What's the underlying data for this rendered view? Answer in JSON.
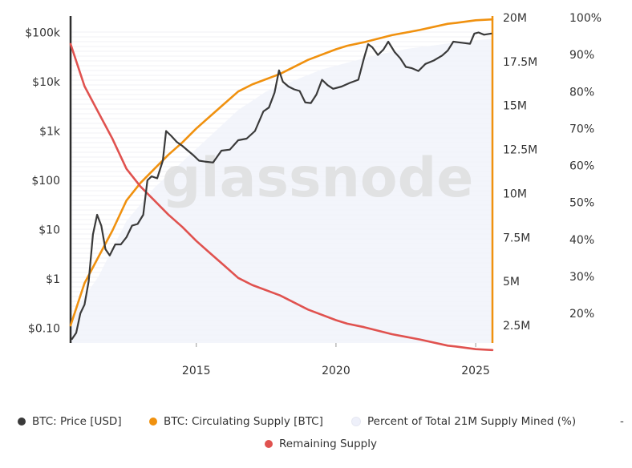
{
  "chart_data": {
    "type": "line",
    "watermark": "glassnode",
    "colors": {
      "price": "#3a3a3a",
      "supply": "#f0910f",
      "percent": "#f2f4fb",
      "remaining": "#e0524f"
    },
    "x_axis": {
      "range": [
        2010.5,
        2025.6
      ],
      "ticks": [
        2015,
        2020,
        2025
      ],
      "tick_labels": [
        "2015",
        "2020",
        "2025"
      ]
    },
    "y_left": {
      "label": "",
      "scale": "log",
      "range": [
        0.05,
        200000
      ],
      "ticks": [
        0.1,
        1,
        10,
        100,
        1000,
        10000,
        100000
      ],
      "tick_labels": [
        "$0.10",
        "$1",
        "$10",
        "$100",
        "$1k",
        "$10k",
        "$100k"
      ]
    },
    "y_mid": {
      "label": "",
      "range": [
        1500000,
        20000000
      ],
      "ticks": [
        2500000,
        5000000,
        7500000,
        10000000,
        12500000,
        15000000,
        17500000,
        20000000
      ],
      "tick_labels": [
        "2.5M",
        "5M",
        "7.5M",
        "10M",
        "12.5M",
        "15M",
        "17.5M",
        "20M"
      ]
    },
    "y_right": {
      "label": "",
      "range": [
        12,
        100
      ],
      "ticks": [
        20,
        30,
        40,
        50,
        60,
        70,
        80,
        90,
        100
      ],
      "tick_labels": [
        "20%",
        "30%",
        "40%",
        "50%",
        "60%",
        "70%",
        "80%",
        "90%",
        "100%"
      ]
    },
    "series": [
      {
        "name": "BTC: Price [USD]",
        "axis": "left",
        "x": [
          2010.55,
          2010.7,
          2010.85,
          2011.0,
          2011.15,
          2011.3,
          2011.45,
          2011.6,
          2011.75,
          2011.9,
          2012.1,
          2012.3,
          2012.5,
          2012.7,
          2012.9,
          2013.1,
          2013.25,
          2013.4,
          2013.6,
          2013.8,
          2013.92,
          2014.1,
          2014.3,
          2014.5,
          2014.7,
          2014.9,
          2015.1,
          2015.3,
          2015.6,
          2015.9,
          2016.2,
          2016.5,
          2016.8,
          2017.1,
          2017.4,
          2017.6,
          2017.8,
          2017.96,
          2018.1,
          2018.3,
          2018.5,
          2018.7,
          2018.9,
          2019.1,
          2019.3,
          2019.5,
          2019.7,
          2019.9,
          2020.2,
          2020.5,
          2020.8,
          2021.0,
          2021.15,
          2021.3,
          2021.5,
          2021.7,
          2021.87,
          2022.1,
          2022.3,
          2022.5,
          2022.7,
          2022.95,
          2023.2,
          2023.5,
          2023.8,
          2024.0,
          2024.2,
          2024.5,
          2024.8,
          2024.95,
          2025.1,
          2025.3,
          2025.55
        ],
        "y": [
          0.06,
          0.08,
          0.2,
          0.3,
          0.9,
          8,
          20,
          12,
          4,
          3,
          5,
          5,
          7,
          12,
          13,
          20,
          100,
          120,
          110,
          250,
          1000,
          800,
          600,
          500,
          400,
          320,
          250,
          240,
          230,
          400,
          420,
          650,
          700,
          1000,
          2500,
          3000,
          6000,
          17000,
          10000,
          8000,
          7000,
          6500,
          3800,
          3700,
          5500,
          11000,
          8500,
          7200,
          8000,
          9500,
          11000,
          30000,
          58000,
          50000,
          35000,
          45000,
          65000,
          40000,
          30000,
          20000,
          19000,
          16500,
          23000,
          27000,
          34000,
          43000,
          65000,
          62000,
          59000,
          95000,
          100000,
          90000,
          95000
        ]
      },
      {
        "name": "BTC: Circulating Supply [BTC]",
        "axis": "mid",
        "x": [
          2010.5,
          2011.0,
          2011.5,
          2012.0,
          2012.5,
          2013.0,
          2013.5,
          2014.0,
          2014.5,
          2015.0,
          2015.5,
          2016.0,
          2016.5,
          2017.0,
          2018.0,
          2019.0,
          2020.0,
          2020.4,
          2021.0,
          2022.0,
          2023.0,
          2024.0,
          2024.3,
          2025.0,
          2025.6
        ],
        "y": [
          2500000,
          4900000,
          6400000,
          7900000,
          9600000,
          10600000,
          11400000,
          12200000,
          12900000,
          13700000,
          14400000,
          15100000,
          15800000,
          16200000,
          16800000,
          17600000,
          18200000,
          18400000,
          18600000,
          19000000,
          19300000,
          19650000,
          19700000,
          19850000,
          19900000
        ]
      },
      {
        "name": "Percent of Total 21M Supply Mined (%)",
        "axis": "right",
        "x": [
          2010.5,
          2011.5,
          2012.5,
          2013.5,
          2014.5,
          2015.5,
          2016.5,
          2017.5,
          2018.5,
          2019.5,
          2020.5,
          2021.5,
          2022.5,
          2023.5,
          2024.5,
          2025.6
        ],
        "y": [
          19,
          30,
          45,
          54,
          61,
          68,
          75,
          80,
          83,
          86,
          88,
          90,
          91.5,
          92.5,
          93.5,
          94.3
        ]
      },
      {
        "name": "Remaining Supply",
        "axis": "mid",
        "x": [
          2010.5,
          2011.0,
          2011.5,
          2012.0,
          2012.5,
          2013.0,
          2013.5,
          2014.0,
          2014.5,
          2015.0,
          2015.5,
          2016.0,
          2016.5,
          2017.0,
          2018.0,
          2019.0,
          2020.0,
          2020.4,
          2021.0,
          2022.0,
          2023.0,
          2024.0,
          2024.3,
          2025.0,
          2025.6
        ],
        "y": [
          18500000,
          16100000,
          14600000,
          13100000,
          11400000,
          10400000,
          9600000,
          8800000,
          8100000,
          7300000,
          6600000,
          5900000,
          5200000,
          4800000,
          4200000,
          3400000,
          2800000,
          2600000,
          2400000,
          2000000,
          1700000,
          1350000,
          1300000,
          1150000,
          1100000
        ]
      }
    ],
    "legend": {
      "placement": "bottom",
      "items": [
        "BTC: Price [USD]",
        "BTC: Circulating Supply [BTC]",
        "Percent of Total 21M Supply Mined (%)",
        "Remaining Supply"
      ],
      "trailing": "-"
    }
  }
}
